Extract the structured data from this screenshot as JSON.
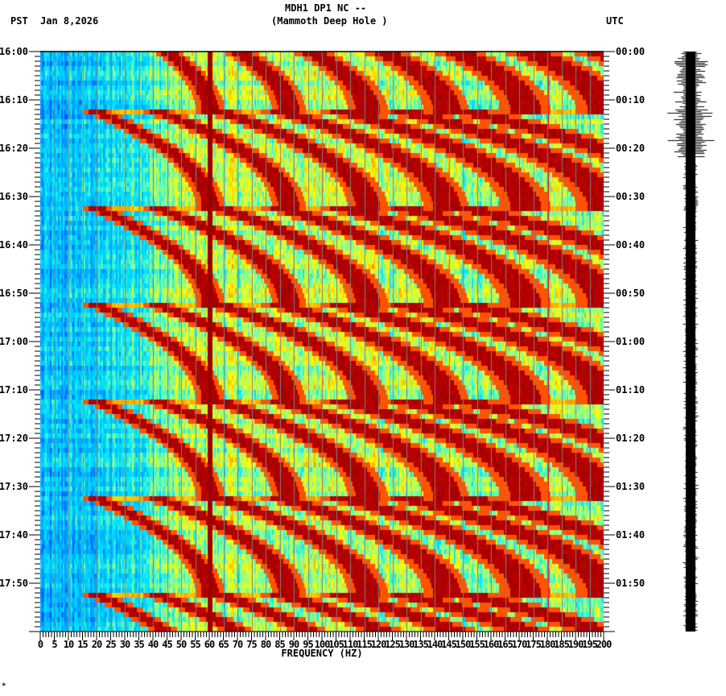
{
  "header": {
    "station_line": "MDH1 DP1 NC --",
    "station_name": "(Mammoth Deep Hole )",
    "left_zone": "PST",
    "date": "Jan 8,2026",
    "right_zone": "UTC"
  },
  "footer": {
    "mark": "*"
  },
  "chart_data": {
    "type": "heatmap",
    "title": "MDH1 DP1 NC -- (Mammoth Deep Hole )",
    "subtitle": "Jan 8,2026",
    "xlabel": "FREQUENCY (HZ)",
    "ylabel_left": "PST",
    "ylabel_right": "UTC",
    "xlim": [
      0,
      200
    ],
    "x_ticks": [
      0,
      5,
      10,
      15,
      20,
      25,
      30,
      35,
      40,
      45,
      50,
      55,
      60,
      65,
      70,
      75,
      80,
      85,
      90,
      95,
      100,
      105,
      110,
      115,
      120,
      125,
      130,
      135,
      140,
      145,
      150,
      155,
      160,
      165,
      170,
      175,
      180,
      185,
      190,
      195,
      200
    ],
    "y_ticks_left": [
      "16:00",
      "16:10",
      "16:20",
      "16:30",
      "16:40",
      "16:50",
      "17:00",
      "17:10",
      "17:20",
      "17:30",
      "17:40",
      "17:50"
    ],
    "y_ticks_right": [
      "00:00",
      "00:10",
      "00:20",
      "00:30",
      "00:40",
      "00:50",
      "01:00",
      "01:10",
      "01:20",
      "01:30",
      "01:40",
      "01:50"
    ],
    "duration_minutes": 120,
    "minor_tick_interval_minutes": 1,
    "grid": {
      "vertical_every_hz": 5,
      "color": "#808080"
    },
    "colormap": [
      "#0050ff",
      "#00aaff",
      "#00e5ff",
      "#7fff9f",
      "#ffff00",
      "#ff9900",
      "#ff0000",
      "#8b0000"
    ],
    "features": {
      "persistent_line_hz": 60,
      "weak_line_hz": 180,
      "sweep_cycle_minutes": 20,
      "sweep_start_minutes": [
        -8,
        12,
        32,
        52,
        72,
        92,
        112
      ],
      "harmonic_branches": 7
    },
    "seismogram": {
      "trace_color": "#000000",
      "active_until_minute": 22
    }
  }
}
